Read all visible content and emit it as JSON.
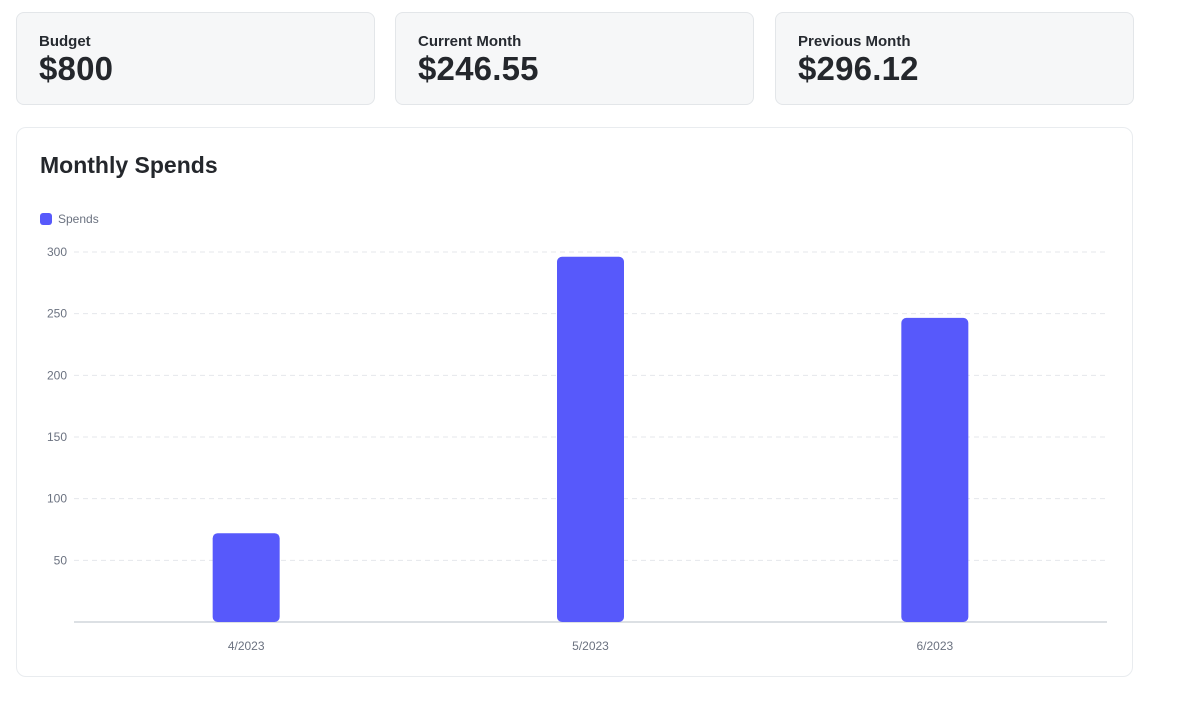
{
  "stats": [
    {
      "label": "Budget",
      "value": "$800"
    },
    {
      "label": "Current Month",
      "value": "$246.55"
    },
    {
      "label": "Previous Month",
      "value": "$296.12"
    }
  ],
  "chart": {
    "title": "Monthly Spends"
  },
  "chart_data": {
    "type": "bar",
    "categories": [
      "4/2023",
      "5/2023",
      "6/2023"
    ],
    "series": [
      {
        "name": "Spends",
        "values": [
          72,
          296.12,
          246.55
        ],
        "color": "#5759fb"
      }
    ],
    "ylim": [
      0,
      300
    ],
    "yticks": [
      50,
      100,
      150,
      200,
      250,
      300
    ],
    "grid": true,
    "legend": "top-left"
  }
}
